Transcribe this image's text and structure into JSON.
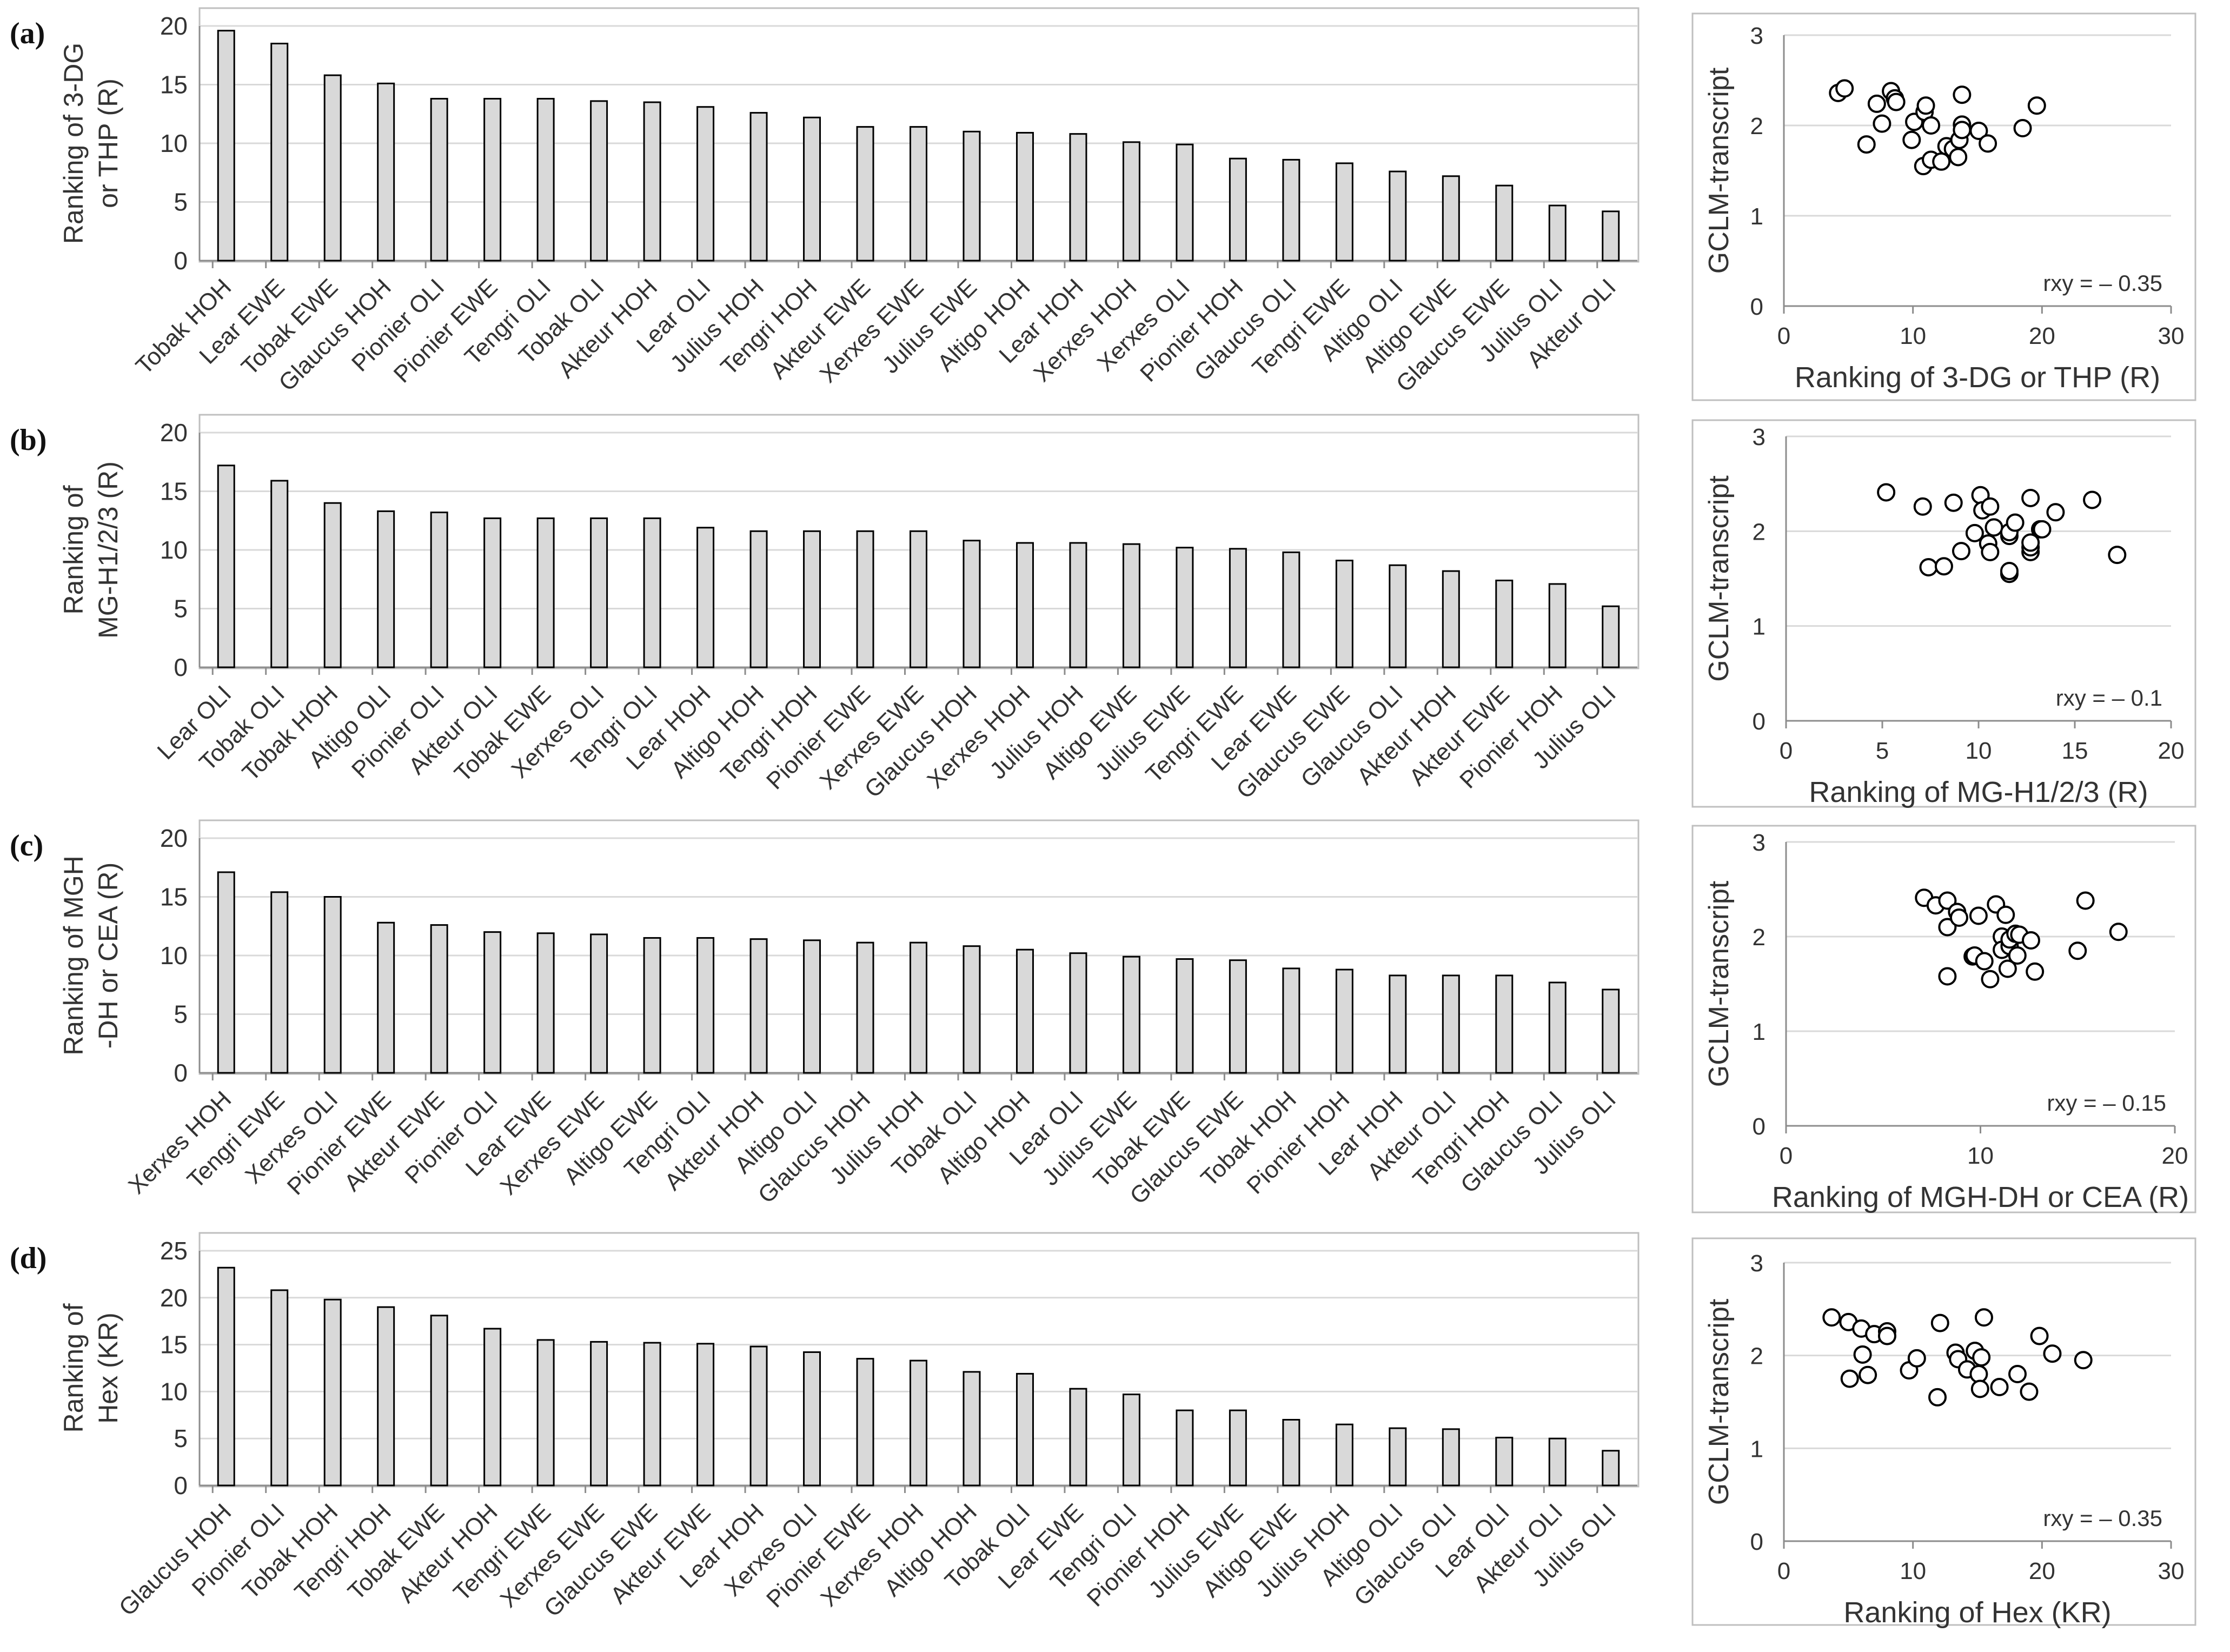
{
  "figure": {
    "panels": [
      {
        "label": "(a)",
        "bar": {
          "type": "bar",
          "ylabel_lines": [
            "Ranking of 3-DG",
            "or THP (R)"
          ],
          "ylim": [
            0,
            20
          ],
          "yticks": [
            0,
            5,
            10,
            15,
            20
          ],
          "categories": [
            "Tobak HOH",
            "Lear EWE",
            "Tobak EWE",
            "Glaucus HOH",
            "Pionier OLI",
            "Pionier EWE",
            "Tengri OLI",
            "Tobak OLI",
            "Akteur HOH",
            "Lear OLI",
            "Julius HOH",
            "Tengri HOH",
            "Akteur EWE",
            "Xerxes EWE",
            "Julius EWE",
            "Altigo HOH",
            "Lear HOH",
            "Xerxes HOH",
            "Xerxes OLI",
            "Pionier HOH",
            "Glaucus OLI",
            "Tengri EWE",
            "Altigo OLI",
            "Altigo EWE",
            "Glaucus EWE",
            "Julius OLI",
            "Akteur OLI"
          ],
          "values": [
            19.6,
            18.5,
            15.8,
            15.1,
            13.8,
            13.8,
            13.8,
            13.6,
            13.5,
            13.1,
            12.6,
            12.2,
            11.4,
            11.4,
            11.0,
            10.9,
            10.8,
            10.1,
            9.9,
            8.7,
            8.6,
            8.3,
            7.6,
            7.2,
            6.4,
            4.7,
            4.2
          ]
        },
        "scatter": {
          "type": "scatter",
          "xlabel": "Ranking of 3-DG or THP (R)",
          "ylabel": "GCLM-transcript",
          "xlim": [
            0,
            30
          ],
          "ylim": [
            0,
            3
          ],
          "xticks": [
            0,
            10,
            20,
            30
          ],
          "yticks": [
            0,
            1,
            2,
            3
          ],
          "annotation": "rxy = – 0.35",
          "points": [
            [
              4.2,
              2.36
            ],
            [
              4.7,
              2.41
            ],
            [
              6.4,
              1.79
            ],
            [
              7.2,
              2.24
            ],
            [
              7.6,
              2.02
            ],
            [
              8.3,
              2.38
            ],
            [
              8.6,
              2.3
            ],
            [
              8.7,
              2.26
            ],
            [
              9.9,
              1.84
            ],
            [
              10.1,
              2.04
            ],
            [
              10.8,
              1.55
            ],
            [
              10.9,
              2.15
            ],
            [
              11.0,
              2.22
            ],
            [
              11.4,
              1.62
            ],
            [
              11.4,
              2.0
            ],
            [
              12.2,
              1.6
            ],
            [
              12.6,
              1.77
            ],
            [
              13.1,
              1.74
            ],
            [
              13.5,
              1.65
            ],
            [
              13.6,
              1.84
            ],
            [
              13.8,
              2.34
            ],
            [
              13.8,
              2.01
            ],
            [
              13.8,
              1.95
            ],
            [
              15.1,
              1.94
            ],
            [
              15.8,
              1.8
            ],
            [
              18.5,
              1.97
            ],
            [
              19.6,
              2.22
            ]
          ]
        }
      },
      {
        "label": "(b)",
        "bar": {
          "type": "bar",
          "ylabel_lines": [
            "Ranking of",
            "MG-H1/2/3 (R)"
          ],
          "ylim": [
            0,
            20
          ],
          "yticks": [
            0,
            5,
            10,
            15,
            20
          ],
          "categories": [
            "Lear OLI",
            "Tobak OLI",
            "Tobak HOH",
            "Altigo OLI",
            "Pionier OLI",
            "Akteur OLI",
            "Tobak EWE",
            "Xerxes OLI",
            "Tengri OLI",
            "Lear HOH",
            "Altigo HOH",
            "Tengri HOH",
            "Pionier EWE",
            "Xerxes EWE",
            "Glaucus HOH",
            "Xerxes HOH",
            "Julius HOH",
            "Altigo EWE",
            "Julius EWE",
            "Tengri EWE",
            "Lear EWE",
            "Glaucus EWE",
            "Glaucus OLI",
            "Akteur HOH",
            "Akteur EWE",
            "Pionier HOH",
            "Julius OLI"
          ],
          "values": [
            17.2,
            15.9,
            14.0,
            13.3,
            13.2,
            12.7,
            12.7,
            12.7,
            12.7,
            11.9,
            11.6,
            11.6,
            11.6,
            11.6,
            10.8,
            10.6,
            10.6,
            10.5,
            10.2,
            10.1,
            9.8,
            9.1,
            8.7,
            8.2,
            7.4,
            7.1,
            5.2
          ]
        },
        "scatter": {
          "type": "scatter",
          "xlabel": "Ranking of MG-H1/2/3 (R)",
          "ylabel": "GCLM-transcript",
          "xlim": [
            0,
            20
          ],
          "ylim": [
            0,
            3
          ],
          "xticks": [
            0,
            5,
            10,
            15,
            20
          ],
          "yticks": [
            0,
            1,
            2,
            3
          ],
          "annotation": "rxy = – 0.1",
          "points": [
            [
              5.2,
              2.41
            ],
            [
              7.1,
              2.26
            ],
            [
              7.4,
              1.62
            ],
            [
              8.2,
              1.63
            ],
            [
              8.7,
              2.3
            ],
            [
              9.1,
              1.79
            ],
            [
              9.8,
              1.98
            ],
            [
              10.1,
              2.38
            ],
            [
              10.2,
              2.22
            ],
            [
              10.5,
              1.87
            ],
            [
              10.6,
              2.26
            ],
            [
              10.6,
              1.78
            ],
            [
              10.8,
              2.04
            ],
            [
              11.6,
              1.55
            ],
            [
              11.6,
              1.58
            ],
            [
              11.6,
              1.95
            ],
            [
              11.6,
              1.99
            ],
            [
              11.9,
              2.09
            ],
            [
              12.7,
              1.78
            ],
            [
              12.7,
              1.83
            ],
            [
              12.7,
              1.88
            ],
            [
              12.7,
              2.35
            ],
            [
              13.2,
              2.02
            ],
            [
              13.3,
              2.02
            ],
            [
              14.0,
              2.2
            ],
            [
              15.9,
              2.33
            ],
            [
              17.2,
              1.75
            ]
          ]
        }
      },
      {
        "label": "(c)",
        "bar": {
          "type": "bar",
          "ylabel_lines": [
            "Ranking of MGH",
            "-DH or CEA (R)"
          ],
          "ylim": [
            0,
            20
          ],
          "yticks": [
            0,
            5,
            10,
            15,
            20
          ],
          "categories": [
            "Xerxes HOH",
            "Tengri EWE",
            "Xerxes OLI",
            "Pionier EWE",
            "Akteur EWE",
            "Pionier OLI",
            "Lear EWE",
            "Xerxes EWE",
            "Altigo EWE",
            "Tengri OLI",
            "Akteur HOH",
            "Altigo OLI",
            "Glaucus HOH",
            "Julius HOH",
            "Tobak OLI",
            "Altigo HOH",
            "Lear OLI",
            "Julius EWE",
            "Tobak EWE",
            "Glaucus EWE",
            "Tobak HOH",
            "Pionier HOH",
            "Lear HOH",
            "Akteur OLI",
            "Tengri HOH",
            "Glaucus OLI",
            "Julius OLI"
          ],
          "values": [
            17.1,
            15.4,
            15.0,
            12.8,
            12.6,
            12.0,
            11.9,
            11.8,
            11.5,
            11.5,
            11.4,
            11.3,
            11.1,
            11.1,
            10.8,
            10.5,
            10.2,
            9.9,
            9.7,
            9.6,
            8.9,
            8.8,
            8.3,
            8.3,
            8.3,
            7.7,
            7.1
          ]
        },
        "scatter": {
          "type": "scatter",
          "xlabel": "Ranking of MGH-DH or CEA (R)",
          "ylabel": "GCLM-transcript",
          "xlim": [
            0,
            20
          ],
          "ylim": [
            0,
            3
          ],
          "xticks": [
            0,
            10,
            20
          ],
          "yticks": [
            0,
            1,
            2,
            3
          ],
          "annotation": "rxy = – 0.15",
          "points": [
            [
              7.1,
              2.41
            ],
            [
              7.7,
              2.33
            ],
            [
              8.3,
              2.38
            ],
            [
              8.3,
              1.58
            ],
            [
              8.3,
              2.1
            ],
            [
              8.8,
              2.26
            ],
            [
              8.9,
              2.2
            ],
            [
              9.6,
              1.79
            ],
            [
              9.7,
              1.8
            ],
            [
              9.9,
              2.22
            ],
            [
              10.2,
              1.74
            ],
            [
              10.5,
              1.55
            ],
            [
              10.8,
              2.34
            ],
            [
              11.1,
              2.0
            ],
            [
              11.1,
              1.86
            ],
            [
              11.3,
              2.23
            ],
            [
              11.4,
              1.66
            ],
            [
              11.5,
              1.9
            ],
            [
              11.5,
              1.97
            ],
            [
              11.8,
              2.03
            ],
            [
              11.9,
              1.8
            ],
            [
              12.0,
              2.02
            ],
            [
              12.6,
              1.96
            ],
            [
              12.8,
              1.63
            ],
            [
              15.0,
              1.85
            ],
            [
              15.4,
              2.38
            ],
            [
              17.1,
              2.05
            ]
          ]
        }
      },
      {
        "label": "(d)",
        "bar": {
          "type": "bar",
          "ylabel_lines": [
            "Ranking of",
            "Hex (KR)"
          ],
          "ylim": [
            0,
            25
          ],
          "yticks": [
            0,
            5,
            10,
            15,
            20,
            25
          ],
          "categories": [
            "Glaucus HOH",
            "Pionier OLI",
            "Tobak HOH",
            "Tengri HOH",
            "Tobak EWE",
            "Akteur HOH",
            "Tengri EWE",
            "Xerxes EWE",
            "Glaucus EWE",
            "Akteur EWE",
            "Lear HOH",
            "Xerxes OLI",
            "Pionier EWE",
            "Xerxes HOH",
            "Altigo HOH",
            "Tobak OLI",
            "Lear EWE",
            "Tengri OLI",
            "Pionier HOH",
            "Julius EWE",
            "Altigo EWE",
            "Julius HOH",
            "Altigo OLI",
            "Glaucus OLI",
            "Lear OLI",
            "Akteur OLI",
            "Julius OLI"
          ],
          "values": [
            23.2,
            20.8,
            19.8,
            19.0,
            18.1,
            16.7,
            15.5,
            15.3,
            15.2,
            15.1,
            14.8,
            14.2,
            13.5,
            13.3,
            12.1,
            11.9,
            10.3,
            9.7,
            8.0,
            8.0,
            7.0,
            6.5,
            6.1,
            6.0,
            5.1,
            5.0,
            3.7
          ]
        },
        "scatter": {
          "type": "scatter",
          "xlabel": "Ranking of Hex (KR)",
          "ylabel": "GCLM-transcript",
          "xlim": [
            0,
            30
          ],
          "ylim": [
            0,
            3
          ],
          "xticks": [
            0,
            10,
            20,
            30
          ],
          "yticks": [
            0,
            1,
            2,
            3
          ],
          "annotation": "rxy = – 0.35",
          "points": [
            [
              3.7,
              2.41
            ],
            [
              5.0,
              2.36
            ],
            [
              5.1,
              1.75
            ],
            [
              6.0,
              2.29
            ],
            [
              6.1,
              2.01
            ],
            [
              6.5,
              1.79
            ],
            [
              7.0,
              2.23
            ],
            [
              8.0,
              2.26
            ],
            [
              8.0,
              2.21
            ],
            [
              9.7,
              1.84
            ],
            [
              10.3,
              1.97
            ],
            [
              11.9,
              1.55
            ],
            [
              12.1,
              2.35
            ],
            [
              13.3,
              2.03
            ],
            [
              13.5,
              1.96
            ],
            [
              14.2,
              1.85
            ],
            [
              14.8,
              2.05
            ],
            [
              15.1,
              1.8
            ],
            [
              15.2,
              1.64
            ],
            [
              15.3,
              1.98
            ],
            [
              15.5,
              2.41
            ],
            [
              16.7,
              1.66
            ],
            [
              18.1,
              1.8
            ],
            [
              19.0,
              1.61
            ],
            [
              19.8,
              2.21
            ],
            [
              20.8,
              2.02
            ],
            [
              23.2,
              1.95
            ]
          ]
        }
      }
    ]
  }
}
